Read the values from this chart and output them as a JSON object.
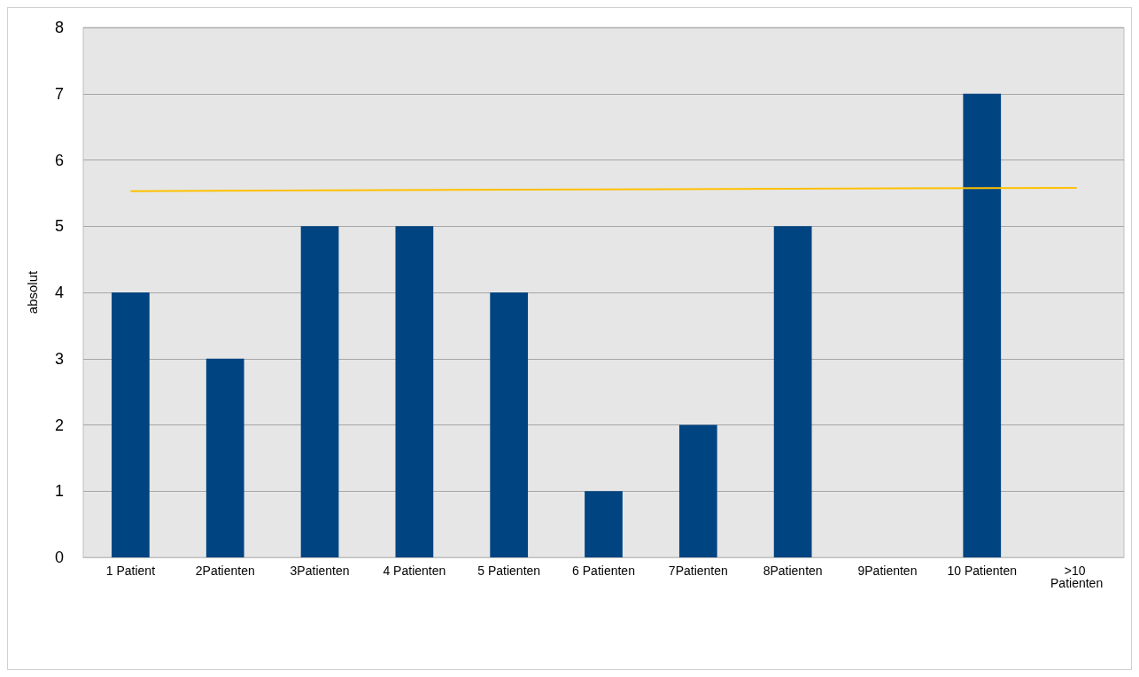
{
  "chart_data": {
    "type": "bar",
    "ylabel": "absolut",
    "categories": [
      "1 Patient",
      "2Patienten",
      "3Patienten",
      "4 Patienten",
      "5 Patienten",
      "6 Patienten",
      "7Patienten",
      "8Patienten",
      "9Patienten",
      "10 Patienten",
      ">10 Patienten"
    ],
    "series": [
      {
        "color": "#004481",
        "values": [
          4,
          3,
          5,
          5,
          4,
          1,
          2,
          5,
          0,
          7,
          0
        ]
      },
      {
        "type": "line",
        "color": "#ffc000",
        "values": [
          5.53,
          null,
          null,
          null,
          null,
          null,
          null,
          null,
          null,
          null,
          5.58
        ]
      }
    ],
    "ylim": [
      0,
      8
    ],
    "yticks": [
      0,
      1,
      2,
      3,
      4,
      5,
      6,
      7,
      8
    ],
    "grid": "y",
    "marker": "none"
  }
}
